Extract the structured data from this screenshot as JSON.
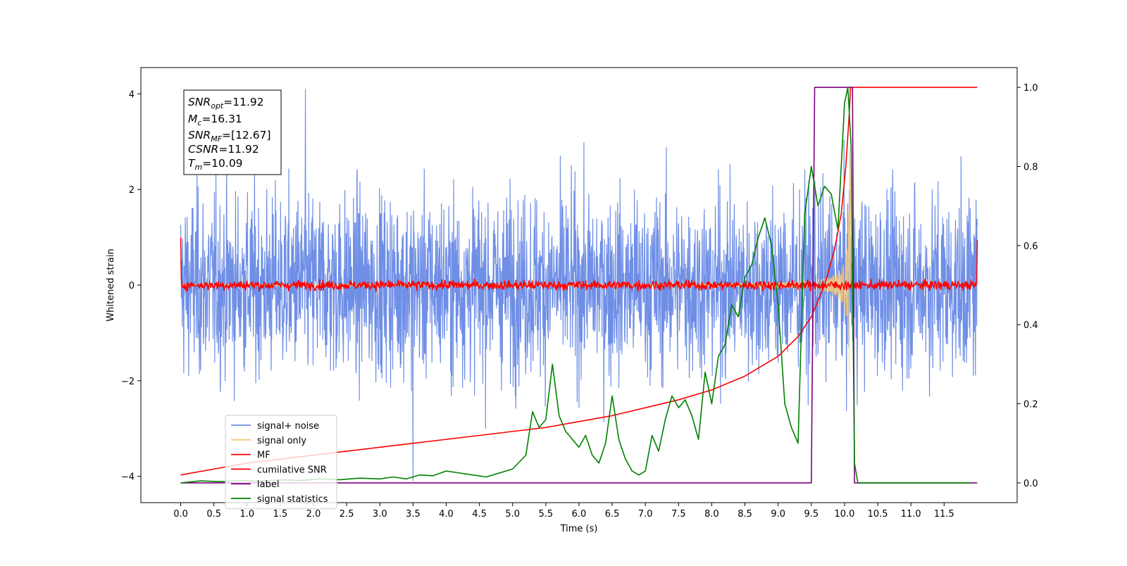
{
  "chart_data": {
    "type": "line",
    "xlabel": "Time (s)",
    "ylabel": "Whitened strain",
    "ylabel_right": "",
    "xlim": [
      -0.6,
      12.6
    ],
    "ylim": [
      -4.55,
      4.55
    ],
    "ylim_right": [
      -0.05,
      1.05
    ],
    "xticks": [
      "0.0",
      "0.5",
      "1.0",
      "1.5",
      "2.0",
      "2.5",
      "3.0",
      "3.5",
      "4.0",
      "4.5",
      "5.0",
      "5.5",
      "6.0",
      "6.5",
      "7.0",
      "7.5",
      "8.0",
      "8.5",
      "9.0",
      "9.5",
      "10.0",
      "10.5",
      "11.0",
      "11.5"
    ],
    "yticks": [
      "−4",
      "−2",
      "0",
      "2",
      "4"
    ],
    "yticks_right": [
      "0.0",
      "0.2",
      "0.4",
      "0.6",
      "0.8",
      "1.0"
    ],
    "legend_position": "lower-left",
    "grid": false,
    "annotation": {
      "snr_opt_base": "SNR",
      "snr_opt_sub": "opt",
      "snr_opt_value": "=11.92",
      "mc_base": "M",
      "mc_sub": "c",
      "mc_value": "=16.31",
      "snr_mf_base": "SNR",
      "snr_mf_sub": "MF",
      "snr_mf_value": "=[12.67]",
      "csnr_base": "CSNR",
      "csnr_value": "=11.92",
      "tm_base": "T",
      "tm_sub": "m",
      "tm_value": "=10.09"
    },
    "series": [
      {
        "name": "signal+ noise",
        "color": "#6f8fe6",
        "axis": "left",
        "kind": "noise",
        "x_range": [
          0.0,
          12.0
        ],
        "sigma": 1.0,
        "peak": 4.1,
        "peak_x": 1.88,
        "min": -4.1,
        "min_x": 3.5
      },
      {
        "name": "signal only",
        "color": "#f5c878",
        "axis": "left",
        "kind": "chirp",
        "x_range": [
          0.0,
          10.1
        ],
        "merger_time": 10.09,
        "max_amplitude": 2.9
      },
      {
        "name": "MF",
        "color": "#ff0000",
        "axis": "left",
        "kind": "noise",
        "x_range": [
          0.0,
          12.0
        ],
        "sigma": 0.05,
        "start_value": 1.0,
        "end_value": 0.95
      },
      {
        "name": "cumilative SNR",
        "color": "#ff0000",
        "axis": "right",
        "x": [
          0.0,
          0.5,
          1.0,
          1.5,
          2.0,
          2.5,
          3.0,
          3.5,
          4.0,
          4.5,
          5.0,
          5.5,
          6.0,
          6.5,
          7.0,
          7.5,
          8.0,
          8.5,
          9.0,
          9.3,
          9.5,
          9.7,
          9.85,
          9.95,
          10.02,
          10.07,
          10.09,
          10.12,
          10.5,
          11.0,
          11.5,
          12.0
        ],
        "y": [
          0.02,
          0.035,
          0.05,
          0.06,
          0.07,
          0.08,
          0.09,
          0.1,
          0.11,
          0.12,
          0.13,
          0.14,
          0.155,
          0.17,
          0.19,
          0.21,
          0.235,
          0.27,
          0.32,
          0.37,
          0.42,
          0.5,
          0.59,
          0.68,
          0.8,
          0.93,
          1.0,
          1.0,
          1.0,
          1.0,
          1.0,
          1.0
        ]
      },
      {
        "name": "label",
        "color": "#800080",
        "axis": "right",
        "x": [
          0.0,
          9.5,
          9.55,
          10.12,
          10.15,
          12.0
        ],
        "y": [
          0.0,
          0.0,
          1.0,
          1.0,
          0.0,
          0.0
        ]
      },
      {
        "name": "signal statistics",
        "color": "#008000",
        "axis": "right",
        "x": [
          0.0,
          0.3,
          0.6,
          0.9,
          1.2,
          1.5,
          1.8,
          2.1,
          2.4,
          2.7,
          3.0,
          3.2,
          3.4,
          3.6,
          3.8,
          4.0,
          4.2,
          4.4,
          4.6,
          4.8,
          5.0,
          5.2,
          5.3,
          5.4,
          5.5,
          5.6,
          5.7,
          5.8,
          5.9,
          6.0,
          6.1,
          6.2,
          6.3,
          6.4,
          6.5,
          6.6,
          6.7,
          6.8,
          6.9,
          7.0,
          7.1,
          7.2,
          7.3,
          7.4,
          7.5,
          7.6,
          7.7,
          7.8,
          7.9,
          8.0,
          8.1,
          8.2,
          8.3,
          8.4,
          8.5,
          8.6,
          8.7,
          8.8,
          8.9,
          9.0,
          9.1,
          9.2,
          9.3,
          9.4,
          9.5,
          9.6,
          9.7,
          9.8,
          9.9,
          10.0,
          10.05,
          10.1,
          10.15,
          10.2,
          10.5,
          11.0,
          11.5,
          11.9
        ],
        "y": [
          0.0,
          0.005,
          0.003,
          0.006,
          0.004,
          0.008,
          0.006,
          0.01,
          0.008,
          0.012,
          0.01,
          0.015,
          0.01,
          0.02,
          0.018,
          0.03,
          0.025,
          0.02,
          0.015,
          0.025,
          0.035,
          0.07,
          0.18,
          0.14,
          0.16,
          0.3,
          0.17,
          0.13,
          0.11,
          0.09,
          0.12,
          0.07,
          0.05,
          0.1,
          0.22,
          0.11,
          0.06,
          0.03,
          0.02,
          0.03,
          0.12,
          0.08,
          0.16,
          0.22,
          0.19,
          0.21,
          0.17,
          0.11,
          0.28,
          0.2,
          0.32,
          0.35,
          0.45,
          0.42,
          0.52,
          0.55,
          0.62,
          0.67,
          0.6,
          0.45,
          0.2,
          0.14,
          0.1,
          0.68,
          0.8,
          0.7,
          0.75,
          0.73,
          0.64,
          0.96,
          1.0,
          0.85,
          0.05,
          0.0,
          0.0,
          0.0,
          0.0,
          0.0
        ]
      }
    ]
  }
}
